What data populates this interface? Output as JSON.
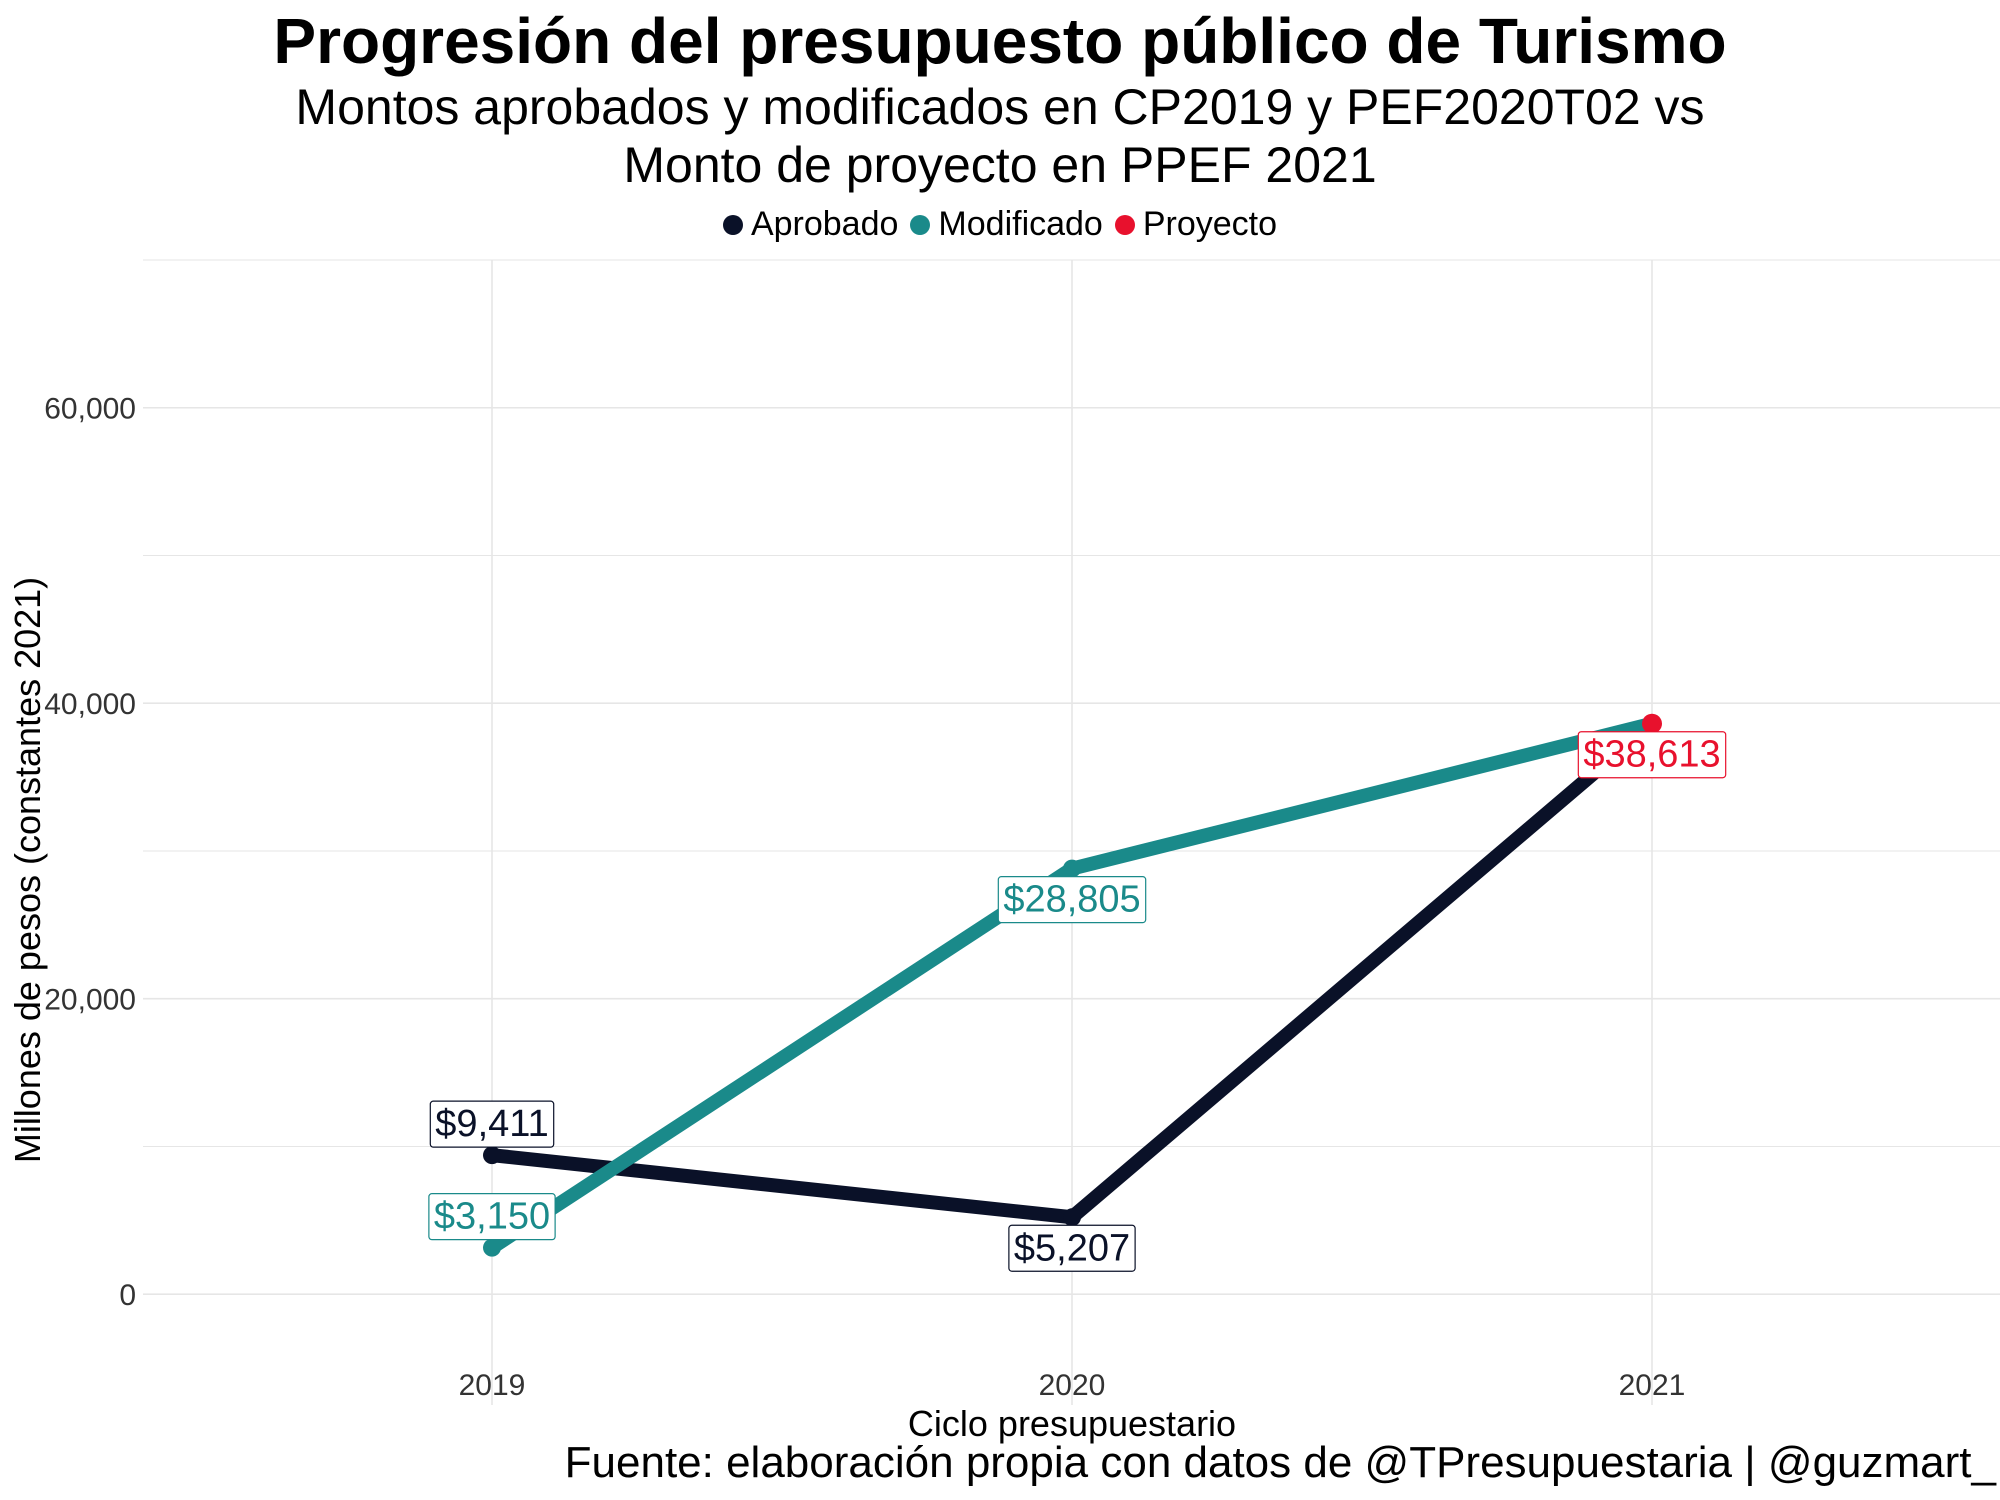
{
  "chart_data": {
    "type": "line",
    "title": "Progresión del presupuesto público de Turismo",
    "subtitle": [
      "Montos aprobados y modificados en CP2019 y PEF2020T02 vs",
      "Monto de proyecto en PPEF 2021"
    ],
    "xlabel": "Ciclo presupuestario",
    "ylabel": "Millones de pesos (constantes 2021)",
    "caption": "Fuente: elaboración propia con datos de @TPresupuestaria | @guzmart_",
    "categories": [
      "2019",
      "2020",
      "2021"
    ],
    "ylim": [
      -7500,
      70000
    ],
    "yticks": [
      0,
      20000,
      40000,
      60000
    ],
    "ytick_labels": [
      "0",
      "20,000",
      "40,000",
      "60,000"
    ],
    "grid": true,
    "legend_position": "top",
    "legend": [
      {
        "name": "Aprobado",
        "color": "#0a1128"
      },
      {
        "name": "Modificado",
        "color": "#1a8a8a"
      },
      {
        "name": "Proyecto",
        "color": "#e8112d"
      }
    ],
    "series": [
      {
        "name": "Aprobado",
        "color": "#0a1128",
        "values": [
          9411,
          5207,
          38613
        ]
      },
      {
        "name": "Modificado",
        "color": "#1a8a8a",
        "values": [
          3150,
          28805,
          38613
        ]
      }
    ],
    "points": [
      {
        "series": "Proyecto",
        "x": "2021",
        "y": 38613,
        "color": "#e8112d"
      }
    ],
    "data_labels": [
      {
        "x": "2019",
        "y": 9411,
        "text": "$9,411",
        "color": "#0a1128",
        "position": "above"
      },
      {
        "x": "2019",
        "y": 3150,
        "text": "$3,150",
        "color": "#1a8a8a",
        "position": "above"
      },
      {
        "x": "2020",
        "y": 5207,
        "text": "$5,207",
        "color": "#0a1128",
        "position": "below"
      },
      {
        "x": "2020",
        "y": 28805,
        "text": "$28,805",
        "color": "#1a8a8a",
        "position": "below"
      },
      {
        "x": "2021",
        "y": 38613,
        "text": "$38,613",
        "color": "#e8112d",
        "position": "below"
      }
    ]
  }
}
